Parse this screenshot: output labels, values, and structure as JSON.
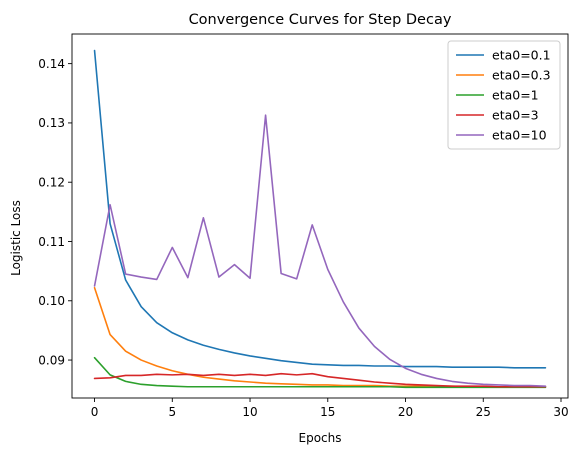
{
  "chart_data": {
    "type": "line",
    "title": "Convergence Curves for Step Decay",
    "xlabel": "Epochs",
    "ylabel": "Logistic Loss",
    "xlim": [
      -1.45,
      30.45
    ],
    "ylim": [
      0.0836,
      0.145
    ],
    "xticks": [
      0,
      5,
      10,
      15,
      20,
      25,
      30
    ],
    "xtick_labels": [
      "0",
      "5",
      "10",
      "15",
      "20",
      "25",
      "30"
    ],
    "yticks": [
      0.09,
      0.1,
      0.11,
      0.12,
      0.13,
      0.14
    ],
    "ytick_labels": [
      "0.09",
      "0.10",
      "0.11",
      "0.12",
      "0.13",
      "0.14"
    ],
    "grid": false,
    "legend_position": "top-right",
    "x": [
      0,
      1,
      2,
      3,
      4,
      5,
      6,
      7,
      8,
      9,
      10,
      11,
      12,
      13,
      14,
      15,
      16,
      17,
      18,
      19,
      20,
      21,
      22,
      23,
      24,
      25,
      26,
      27,
      28,
      29
    ],
    "series": [
      {
        "name": "eta0=0.1",
        "color": "#1f77b4",
        "values": [
          0.1422,
          0.113,
          0.1035,
          0.099,
          0.0963,
          0.0946,
          0.0934,
          0.0925,
          0.0918,
          0.0912,
          0.0907,
          0.0903,
          0.0899,
          0.0896,
          0.0893,
          0.0892,
          0.0891,
          0.0891,
          0.089,
          0.089,
          0.0889,
          0.0889,
          0.0889,
          0.0888,
          0.0888,
          0.0888,
          0.0888,
          0.0887,
          0.0887,
          0.0887
        ]
      },
      {
        "name": "eta0=0.3",
        "color": "#ff7f0e",
        "values": [
          0.1022,
          0.0943,
          0.0915,
          0.09,
          0.089,
          0.0882,
          0.0876,
          0.0871,
          0.0868,
          0.0865,
          0.0863,
          0.0861,
          0.086,
          0.0859,
          0.0858,
          0.0858,
          0.0857,
          0.0857,
          0.0857,
          0.0856,
          0.0856,
          0.0856,
          0.0856,
          0.0856,
          0.0855,
          0.0855,
          0.0855,
          0.0855,
          0.0855,
          0.0855
        ]
      },
      {
        "name": "eta0=1",
        "color": "#2ca02c",
        "values": [
          0.0904,
          0.0875,
          0.0864,
          0.0859,
          0.0857,
          0.0856,
          0.0855,
          0.0855,
          0.0855,
          0.0855,
          0.0855,
          0.0855,
          0.0855,
          0.0855,
          0.0855,
          0.0855,
          0.0855,
          0.0855,
          0.0855,
          0.0855,
          0.0854,
          0.0854,
          0.0854,
          0.0854,
          0.0854,
          0.0854,
          0.0854,
          0.0854,
          0.0854,
          0.0854
        ]
      },
      {
        "name": "eta0=3",
        "color": "#d62728",
        "values": [
          0.0869,
          0.087,
          0.0874,
          0.0874,
          0.0876,
          0.0875,
          0.0876,
          0.0874,
          0.0876,
          0.0874,
          0.0876,
          0.0874,
          0.0877,
          0.0875,
          0.0877,
          0.0872,
          0.0869,
          0.0866,
          0.0863,
          0.0861,
          0.0859,
          0.0858,
          0.0857,
          0.0856,
          0.0856,
          0.0856,
          0.0855,
          0.0855,
          0.0855,
          0.0855
        ]
      },
      {
        "name": "eta0=10",
        "color": "#9467bd",
        "values": [
          0.1025,
          0.1162,
          0.1045,
          0.104,
          0.1036,
          0.109,
          0.1039,
          0.114,
          0.104,
          0.1061,
          0.1038,
          0.1313,
          0.1046,
          0.1037,
          0.1128,
          0.1053,
          0.0998,
          0.0954,
          0.0923,
          0.0901,
          0.0886,
          0.0876,
          0.0869,
          0.0864,
          0.0861,
          0.0859,
          0.0858,
          0.0857,
          0.0857,
          0.0856
        ]
      }
    ]
  }
}
